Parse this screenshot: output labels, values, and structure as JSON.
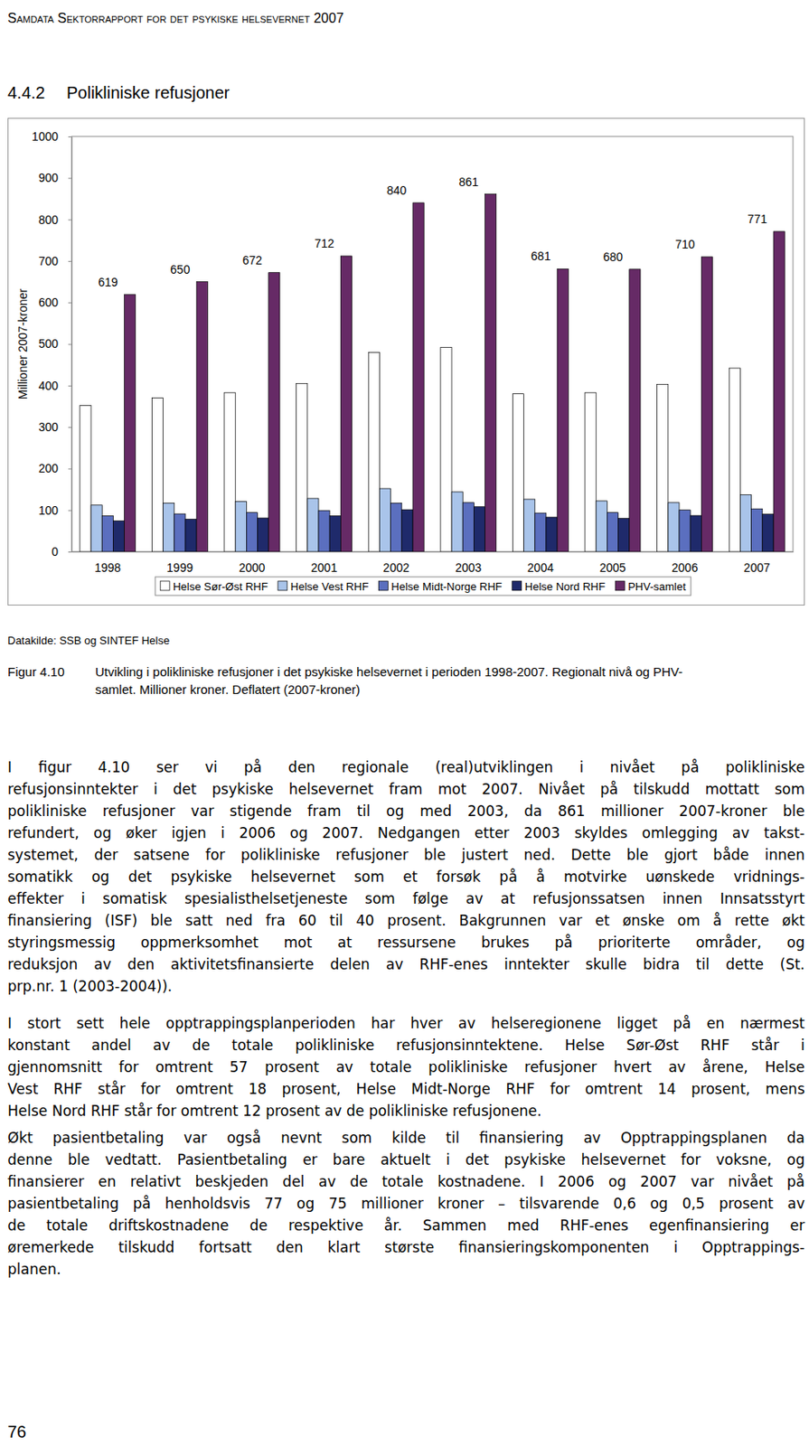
{
  "header": "Samdata Sektorrapport for det psykiske helsevernet 2007",
  "section": {
    "number": "4.4.2",
    "title": "Polikliniske refusjoner"
  },
  "chart_data": {
    "type": "bar",
    "ylabel": "Millioner 2007-kroner",
    "categories": [
      "1998",
      "1999",
      "2000",
      "2001",
      "2002",
      "2003",
      "2004",
      "2005",
      "2006",
      "2007"
    ],
    "series": [
      {
        "name": "Helse Sør-Øst RHF",
        "color": "#ffffff",
        "values": [
          352,
          370,
          383,
          405,
          480,
          492,
          380,
          383,
          403,
          442
        ]
      },
      {
        "name": "Helse Vest RHF",
        "color": "#a9c4ea",
        "values": [
          112,
          117,
          121,
          128,
          152,
          144,
          126,
          122,
          118,
          137
        ]
      },
      {
        "name": "Helse Midt-Norge RHF",
        "color": "#5b6fbf",
        "values": [
          86,
          91,
          94,
          99,
          117,
          118,
          93,
          94,
          100,
          103
        ]
      },
      {
        "name": "Helse Nord RHF",
        "color": "#1f2a6b",
        "values": [
          74,
          78,
          81,
          86,
          101,
          108,
          83,
          80,
          87,
          90
        ]
      },
      {
        "name": "PHV-samlet",
        "color": "#662a66",
        "values": [
          619,
          650,
          672,
          712,
          840,
          861,
          681,
          680,
          710,
          771
        ],
        "data_labels": true
      }
    ],
    "ylim": [
      0,
      1000
    ],
    "yticks": [
      0,
      100,
      200,
      300,
      400,
      500,
      600,
      700,
      800,
      900,
      1000
    ],
    "grid": false,
    "legend": "bottom"
  },
  "source": "Datakilde: SSB og SINTEF Helse",
  "caption": {
    "label": "Figur 4.10",
    "lines": [
      "Utvikling i polikliniske refusjoner i det psykiske helsevernet i perioden 1998-2007. Regionalt nivå og PHV-",
      "samlet. Millioner kroner. Deflatert (2007-kroner)"
    ]
  },
  "paragraphs": [
    {
      "lines": [
        "I figur 4.10 ser vi på den regionale (real)utviklingen i nivået på polikliniske",
        "refusjonsinntekter i det psykiske helsevernet fram mot 2007. Nivået på tilskudd mottatt som",
        "polikliniske refusjoner var stigende fram til og med 2003, da 861 millioner 2007-kroner ble",
        "refundert, og øker igjen i 2006 og 2007. Nedgangen etter 2003 skyldes omlegging av takst-",
        "systemet, der satsene for polikliniske refusjoner ble justert ned. Dette ble gjort både innen",
        "somatikk og det psykiske helsevernet som et forsøk på å motvirke uønskede vridnings-",
        "effekter i somatisk spesialisthelsetjeneste som følge av at refusjonssatsen innen Innsatsstyrt",
        "finansiering (ISF) ble satt ned fra 60 til 40 prosent. Bakgrunnen var et ønske om å rette økt",
        "styringsmessig oppmerksomhet mot at ressursene brukes på prioriterte områder, og",
        "reduksjon av den aktivitetsfinansierte delen av RHF-enes inntekter skulle bidra til dette (St.",
        "prp.nr. 1 (2003-2004))."
      ]
    },
    {
      "lines": [
        "I stort sett hele opptrappingsplanperioden har hver av helseregionene ligget på en nærmest",
        "konstant andel av de totale polikliniske refusjonsinntektene. Helse Sør-Øst RHF står i",
        "gjennomsnitt for omtrent 57 prosent av totale polikliniske refusjoner hvert av årene, Helse",
        "Vest RHF står for omtrent 18 prosent, Helse Midt-Norge RHF for omtrent 14 prosent, mens",
        "Helse Nord RHF står for omtrent 12 prosent av de polikliniske refusjonene."
      ]
    },
    {
      "lines": [
        "Økt pasientbetaling var også nevnt som kilde til finansiering av Opptrappingsplanen da",
        "denne ble vedtatt. Pasientbetaling er bare aktuelt i det psykiske helsevernet for voksne, og",
        "finansierer en relativt beskjeden del av de totale kostnadene. I 2006 og 2007 var nivået på",
        "pasientbetaling på henholdsvis 77 og 75 millioner kroner – tilsvarende 0,6 og 0,5 prosent av",
        "de totale driftskostnadene de respektive år. Sammen med RHF-enes egenfinansiering er",
        "øremerkede tilskudd fortsatt den klart største finansieringskomponenten i Opptrappings-",
        "planen."
      ]
    }
  ],
  "page_number": "76"
}
